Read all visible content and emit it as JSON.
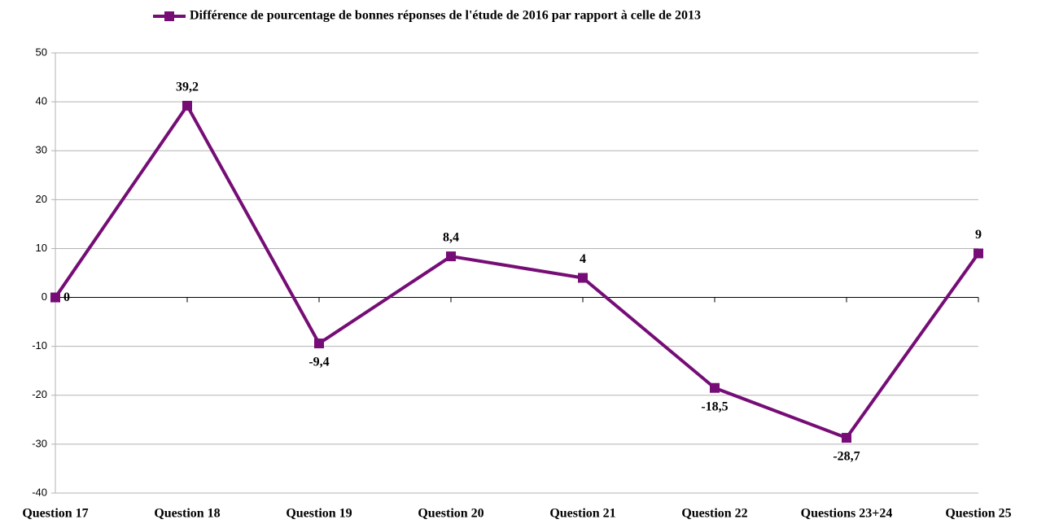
{
  "chart_data": {
    "type": "line",
    "categories": [
      "Question 17",
      "Question 18",
      "Question 19",
      "Question 20",
      "Question 21",
      "Question 22",
      "Questions 23+24",
      "Question 25"
    ],
    "series": [
      {
        "name": "Différence de pourcentage de bonnes réponses de l'étude de 2016 par rapport à celle de 2013",
        "color": "#760d76",
        "values": [
          0,
          39.2,
          -9.4,
          8.4,
          4,
          -18.5,
          -28.7,
          9
        ],
        "value_labels": [
          "0",
          "39,2",
          "-9,4",
          "8,4",
          "4",
          "-18,5",
          "-28,7",
          "9"
        ]
      }
    ],
    "ylim": [
      -40,
      50
    ],
    "yticks": [
      -40,
      -30,
      -20,
      -10,
      0,
      10,
      20,
      30,
      40,
      50
    ],
    "grid": true,
    "legend": "top"
  }
}
